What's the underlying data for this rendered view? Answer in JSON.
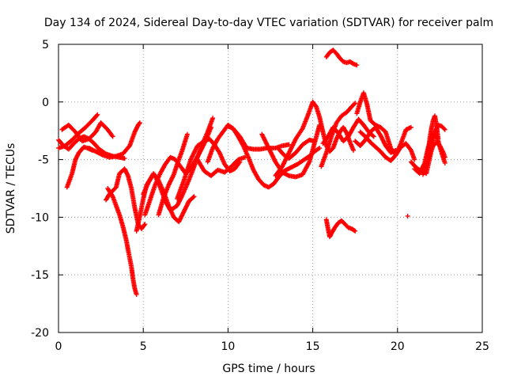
{
  "chart_data": {
    "type": "scatter",
    "title": "Day 134 of 2024, Sidereal Day-to-day VTEC variation (SDTVAR) for receiver palm",
    "xlabel": "GPS time / hours",
    "ylabel": "SDTVAR / TECUs",
    "xlim": [
      0,
      25
    ],
    "ylim": [
      -20,
      5
    ],
    "xticks": [
      0,
      5,
      10,
      15,
      20,
      25
    ],
    "yticks": [
      5,
      0,
      -5,
      -10,
      -15,
      -20
    ],
    "grid": true,
    "marker": "+",
    "color": "#ff0000",
    "series": [
      {
        "name": "a1",
        "x": [
          0.0,
          0.3,
          0.6,
          0.9,
          1.2,
          1.5,
          1.8,
          2.1,
          2.4,
          2.8,
          3.2,
          3.6,
          3.9
        ],
        "y": [
          -3.3,
          -3.8,
          -4.1,
          -3.6,
          -3.2,
          -3.0,
          -3.2,
          -3.6,
          -4.1,
          -4.5,
          -4.7,
          -4.8,
          -4.9
        ]
      },
      {
        "name": "a2",
        "x": [
          0.0,
          0.4,
          0.8,
          1.2,
          1.6,
          2.0,
          2.3
        ],
        "y": [
          -4.0,
          -3.8,
          -3.3,
          -2.7,
          -2.2,
          -1.6,
          -1.1
        ]
      },
      {
        "name": "a3",
        "x": [
          0.2,
          0.6,
          1.0,
          1.4,
          1.8,
          2.2,
          2.5,
          2.9,
          3.2
        ],
        "y": [
          -2.4,
          -2.0,
          -2.6,
          -3.4,
          -3.2,
          -2.6,
          -1.8,
          -2.4,
          -3.0
        ]
      },
      {
        "name": "a4",
        "x": [
          0.5,
          0.8,
          1.0,
          1.2,
          1.5,
          1.7,
          2.0
        ],
        "y": [
          -7.4,
          -6.2,
          -5.0,
          -4.4,
          -3.9,
          -4.0,
          -4.2
        ]
      },
      {
        "name": "a5",
        "x": [
          1.8,
          2.2,
          2.6,
          3.0,
          3.4,
          3.8,
          4.2,
          4.5,
          4.7,
          4.8
        ],
        "y": [
          -4.0,
          -4.3,
          -4.6,
          -4.8,
          -4.7,
          -4.5,
          -3.8,
          -2.6,
          -2.0,
          -1.8
        ]
      },
      {
        "name": "b1",
        "x": [
          2.9,
          3.2,
          3.4,
          3.6,
          3.8,
          4.0,
          4.1,
          4.3,
          4.4,
          4.5,
          4.6
        ],
        "y": [
          -7.5,
          -8.2,
          -9.0,
          -9.8,
          -10.8,
          -12.0,
          -12.8,
          -14.3,
          -15.4,
          -16.2,
          -16.7
        ]
      },
      {
        "name": "b2",
        "x": [
          2.8,
          3.0,
          3.4,
          3.6,
          3.9,
          4.1,
          4.3,
          4.5,
          4.7,
          4.9,
          5.1
        ],
        "y": [
          -8.5,
          -8.0,
          -7.4,
          -6.2,
          -5.8,
          -6.4,
          -7.5,
          -9.2,
          -10.6,
          -11.0,
          -10.6
        ]
      },
      {
        "name": "b3",
        "x": [
          4.6,
          4.8,
          5.0,
          5.2,
          5.5
        ],
        "y": [
          -11.2,
          -9.9,
          -8.4,
          -7.2,
          -6.5
        ]
      },
      {
        "name": "c1",
        "x": [
          5.0,
          5.3,
          5.6,
          5.9,
          6.2,
          6.5,
          6.8,
          7.1,
          7.4,
          7.7,
          8.0
        ],
        "y": [
          -8.0,
          -7.0,
          -6.2,
          -6.8,
          -7.8,
          -9.0,
          -10.0,
          -10.4,
          -9.5,
          -8.6,
          -8.2
        ]
      },
      {
        "name": "c2",
        "x": [
          5.1,
          5.4,
          5.7,
          6.0,
          6.3,
          6.6,
          6.9,
          7.2,
          7.5,
          7.8,
          8.1,
          8.4,
          8.7,
          9.0
        ],
        "y": [
          -9.8,
          -8.5,
          -7.2,
          -6.2,
          -5.4,
          -4.8,
          -5.0,
          -5.6,
          -6.2,
          -5.8,
          -5.0,
          -4.2,
          -3.3,
          -2.2
        ]
      },
      {
        "name": "c3",
        "x": [
          5.9,
          6.2,
          6.5,
          6.8,
          7.0,
          7.3,
          7.6
        ],
        "y": [
          -9.8,
          -8.3,
          -7.2,
          -6.3,
          -5.4,
          -4.2,
          -2.8
        ]
      },
      {
        "name": "c4",
        "x": [
          5.7,
          6.0,
          6.3,
          6.6,
          7.0,
          7.3,
          7.6,
          7.9,
          8.2,
          8.5,
          8.8,
          9.1
        ],
        "y": [
          -6.4,
          -7.4,
          -8.6,
          -9.4,
          -9.0,
          -8.1,
          -7.1,
          -6.0,
          -4.8,
          -3.6,
          -2.6,
          -1.4
        ]
      },
      {
        "name": "c5",
        "x": [
          7.0,
          7.4,
          7.8,
          8.2,
          8.6,
          8.9,
          9.2,
          9.5,
          9.8,
          10.1,
          10.4,
          10.7
        ],
        "y": [
          -8.4,
          -6.8,
          -5.0,
          -3.8,
          -3.4,
          -3.2,
          -3.7,
          -4.4,
          -5.4,
          -6.0,
          -5.8,
          -5.2
        ]
      },
      {
        "name": "c6",
        "x": [
          8.2,
          8.6,
          9.0,
          9.4,
          9.8,
          10.2,
          10.6,
          11.0
        ],
        "y": [
          -5.0,
          -6.0,
          -6.4,
          -5.9,
          -6.1,
          -5.6,
          -5.0,
          -4.8
        ]
      },
      {
        "name": "c7",
        "x": [
          8.8,
          9.1,
          9.4,
          9.7,
          10.0,
          10.3,
          10.7,
          11.1,
          11.5,
          11.9,
          12.3,
          12.8,
          13.2,
          13.6
        ],
        "y": [
          -5.2,
          -4.0,
          -3.2,
          -2.6,
          -2.0,
          -2.3,
          -3.0,
          -4.0,
          -4.1,
          -4.1,
          -4.0,
          -4.0,
          -3.8,
          -3.7
        ]
      },
      {
        "name": "c8",
        "x": [
          10.0,
          10.3,
          10.6,
          10.9,
          11.2,
          11.5,
          11.8,
          12.1,
          12.4,
          12.7,
          13.0,
          13.3,
          13.7,
          14.1,
          14.5,
          14.9,
          15.1,
          15.4
        ],
        "y": [
          -2.1,
          -2.3,
          -3.0,
          -3.8,
          -4.8,
          -5.9,
          -6.7,
          -7.2,
          -7.4,
          -7.1,
          -6.5,
          -6.0,
          -5.7,
          -5.4,
          -5.0,
          -4.6,
          -4.3,
          -4.0
        ]
      },
      {
        "name": "d1",
        "x": [
          12.0,
          12.4,
          12.8,
          13.2,
          13.6,
          14.0,
          14.4,
          14.8,
          15.1,
          15.4
        ],
        "y": [
          -2.8,
          -4.0,
          -5.2,
          -6.1,
          -6.4,
          -6.5,
          -6.3,
          -5.2,
          -3.6,
          -2.0
        ]
      },
      {
        "name": "d2",
        "x": [
          12.8,
          13.2,
          13.6,
          14.0,
          14.4,
          14.7,
          15.0
        ],
        "y": [
          -6.4,
          -5.6,
          -4.4,
          -3.2,
          -2.3,
          -1.2,
          0.0
        ]
      },
      {
        "name": "d3",
        "x": [
          13.0,
          13.3,
          13.6,
          14.0,
          14.4,
          14.8,
          15.1
        ],
        "y": [
          -4.1,
          -4.6,
          -4.9,
          -4.4,
          -3.7,
          -3.3,
          -3.4
        ]
      },
      {
        "name": "e1",
        "x": [
          15.0,
          15.2,
          15.4,
          15.6,
          15.8,
          16.0,
          16.2,
          16.4,
          16.6,
          16.8,
          17.0,
          17.2,
          17.4
        ],
        "y": [
          0.0,
          -0.4,
          -1.3,
          -2.6,
          -3.8,
          -4.3,
          -4.0,
          -3.2,
          -2.6,
          -2.2,
          -2.7,
          -3.5,
          -4.2
        ]
      },
      {
        "name": "e2",
        "x": [
          15.5,
          15.8,
          16.1,
          16.4,
          16.7,
          17.0,
          17.3,
          17.5
        ],
        "y": [
          -5.6,
          -4.4,
          -3.0,
          -1.8,
          -1.2,
          -0.9,
          -0.4,
          -0.1
        ]
      },
      {
        "name": "e3",
        "x": [
          15.6,
          15.9,
          16.2,
          16.5,
          16.8,
          17.1,
          17.4,
          17.7,
          18.0,
          18.3,
          18.6
        ],
        "y": [
          -3.6,
          -3.0,
          -2.2,
          -2.7,
          -3.4,
          -3.0,
          -2.2,
          -1.5,
          -2.0,
          -2.6,
          -3.0
        ]
      },
      {
        "name": "e4",
        "x": [
          15.8,
          16.0,
          16.2,
          16.4,
          16.6,
          16.8,
          17.0,
          17.2,
          17.4,
          17.6
        ],
        "y": [
          3.9,
          4.3,
          4.5,
          4.2,
          3.8,
          3.5,
          3.4,
          3.5,
          3.3,
          3.2
        ]
      },
      {
        "name": "e5",
        "x": [
          15.8,
          15.9,
          16.0,
          16.1,
          16.3,
          16.5,
          16.7,
          16.9,
          17.1,
          17.3,
          17.5
        ],
        "y": [
          -10.2,
          -11.0,
          -11.7,
          -11.4,
          -10.9,
          -10.5,
          -10.3,
          -10.6,
          -10.9,
          -11.0,
          -11.2
        ]
      },
      {
        "name": "f1",
        "x": [
          17.6,
          17.8,
          18.0,
          18.2,
          18.4,
          18.7,
          19.0,
          19.3,
          19.6,
          19.9,
          20.2,
          20.5,
          20.8
        ],
        "y": [
          -1.0,
          0.0,
          0.8,
          -0.2,
          -1.6,
          -2.0,
          -2.2,
          -2.6,
          -4.0,
          -4.6,
          -3.6,
          -2.4,
          -2.2
        ]
      },
      {
        "name": "f2",
        "x": [
          17.5,
          17.8,
          18.1,
          18.4,
          18.7,
          19.0,
          19.3,
          19.6,
          19.9
        ],
        "y": [
          -3.4,
          -3.8,
          -3.3,
          -2.6,
          -2.2,
          -2.9,
          -3.8,
          -4.4,
          -4.2
        ]
      },
      {
        "name": "f3",
        "x": [
          17.8,
          18.1,
          18.4,
          18.7,
          19.0,
          19.3,
          19.6,
          19.9,
          20.2,
          20.5,
          20.8,
          21.0
        ],
        "y": [
          -2.6,
          -3.0,
          -3.5,
          -3.9,
          -4.3,
          -4.8,
          -5.1,
          -4.6,
          -3.9,
          -3.6,
          -4.2,
          -5.0
        ]
      },
      {
        "name": "g1",
        "x": [
          20.8,
          21.1,
          21.4,
          21.7,
          22.0,
          22.2,
          22.4,
          22.6,
          22.8
        ],
        "y": [
          -5.2,
          -5.7,
          -6.0,
          -6.2,
          -4.2,
          -2.6,
          -2.0,
          -2.1,
          -2.4
        ]
      },
      {
        "name": "g2",
        "x": [
          21.0,
          21.3,
          21.6,
          21.8,
          22.0,
          22.2,
          22.4,
          22.6,
          22.8
        ],
        "y": [
          -5.8,
          -6.2,
          -5.3,
          -4.0,
          -3.0,
          -2.6,
          -3.4,
          -4.4,
          -5.3
        ]
      },
      {
        "name": "g3",
        "x": [
          21.5,
          21.7,
          21.9,
          22.1,
          22.3,
          22.5,
          22.7,
          22.8
        ],
        "y": [
          -6.3,
          -5.4,
          -4.6,
          -3.8,
          -3.5,
          -3.8,
          -4.4,
          -4.8
        ]
      },
      {
        "name": "g4",
        "x": [
          21.8,
          21.9,
          22.0,
          22.1,
          22.2,
          22.3,
          22.4
        ],
        "y": [
          -4.5,
          -3.2,
          -2.3,
          -1.6,
          -1.2,
          -2.0,
          -3.2
        ]
      },
      {
        "name": "h1",
        "x": [
          20.6
        ],
        "y": [
          -9.9
        ]
      }
    ]
  }
}
